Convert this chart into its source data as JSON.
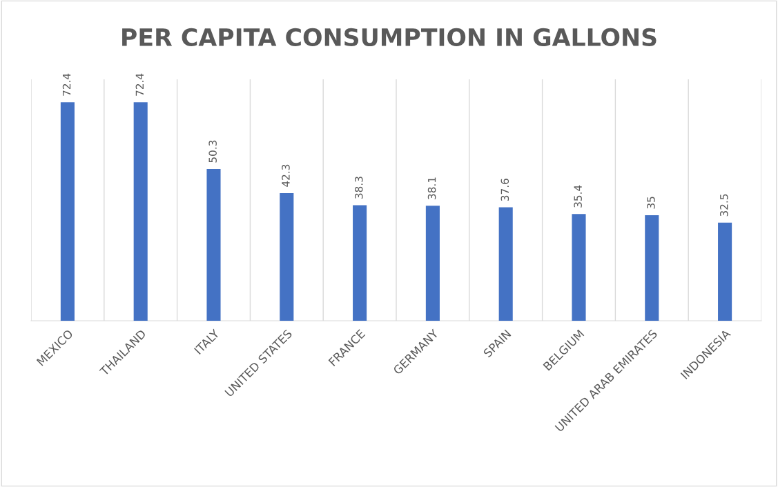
{
  "chart_data": {
    "type": "bar",
    "title": "PER CAPITA CONSUMPTION IN GALLONS",
    "categories": [
      "MEXICO",
      "THAILAND",
      "ITALY",
      "UNITED STATES",
      "FRANCE",
      "GERMANY",
      "SPAIN",
      "BELGIUM",
      "UNITED ARAB EMIRATES",
      "INDONESIA"
    ],
    "values": [
      72.4,
      72.4,
      50.3,
      42.3,
      38.3,
      38.1,
      37.6,
      35.4,
      35,
      32.5
    ],
    "color": "#4472c4",
    "data_labels": true,
    "grid": "x",
    "tick_labels": "x",
    "legend": false
  }
}
